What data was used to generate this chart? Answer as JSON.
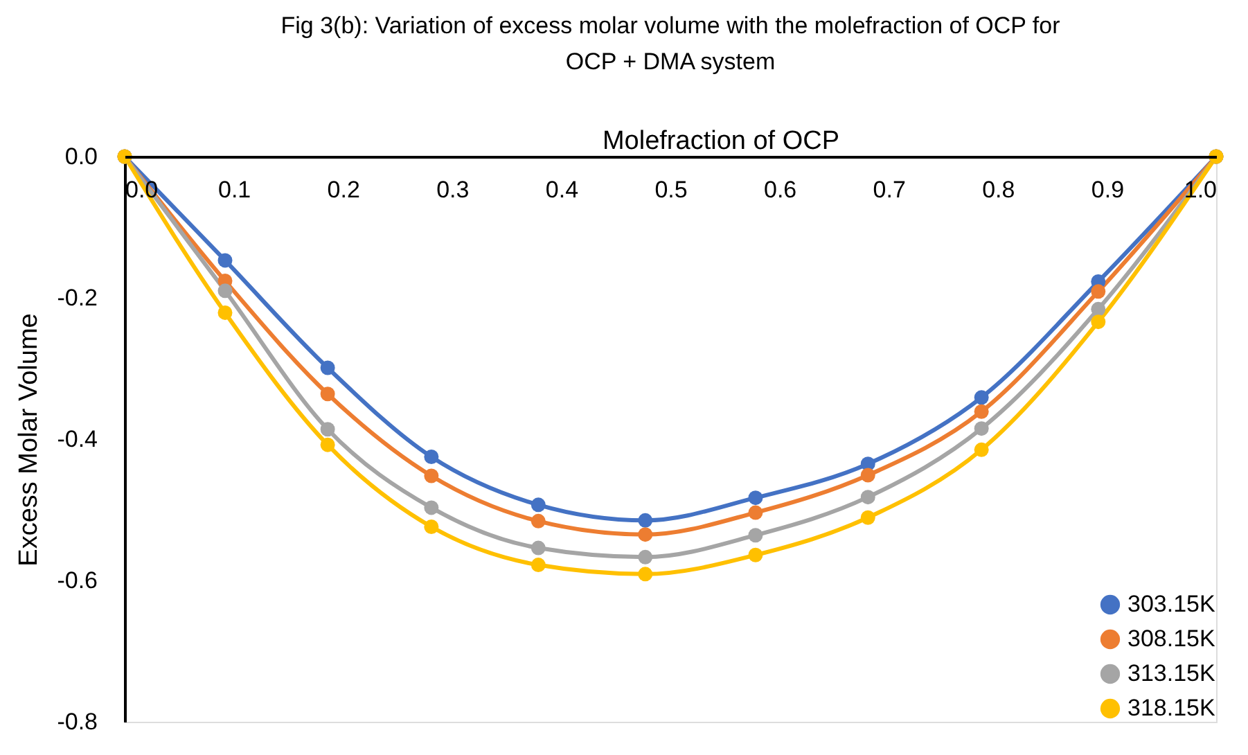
{
  "chart_data": {
    "type": "line",
    "title": "Fig 3(b): Variation of excess molar volume with the molefraction of OCP for OCP + DMA system",
    "xlabel": "Molefraction of OCP",
    "ylabel": "Excess Molar Volume",
    "x": [
      0,
      0.092,
      0.186,
      0.281,
      0.379,
      0.477,
      0.578,
      0.681,
      0.785,
      0.892,
      1.0
    ],
    "series": [
      {
        "name": "303.15K",
        "color": "#4472c4",
        "values": [
          0,
          -0.147,
          -0.299,
          -0.425,
          -0.493,
          -0.515,
          -0.483,
          -0.435,
          -0.341,
          -0.177,
          0
        ]
      },
      {
        "name": "308.15K",
        "color": "#ed7d31",
        "values": [
          0,
          -0.176,
          -0.336,
          -0.452,
          -0.516,
          -0.535,
          -0.504,
          -0.451,
          -0.361,
          -0.191,
          0
        ]
      },
      {
        "name": "313.15K",
        "color": "#a5a5a5",
        "values": [
          0,
          -0.19,
          -0.386,
          -0.497,
          -0.554,
          -0.567,
          -0.536,
          -0.482,
          -0.385,
          -0.216,
          0
        ]
      },
      {
        "name": "318.15K",
        "color": "#ffc000",
        "values": [
          0,
          -0.221,
          -0.408,
          -0.524,
          -0.578,
          -0.591,
          -0.564,
          -0.511,
          -0.415,
          -0.234,
          0
        ]
      }
    ],
    "xlim": [
      0,
      1.0
    ],
    "xticks": [
      {
        "value": 0,
        "label": "0.0"
      },
      0.1,
      0.2,
      0.3,
      0.4,
      0.5,
      0.6,
      0.7,
      0.8,
      0.9,
      {
        "value": 1.0,
        "label": "1.0"
      }
    ],
    "ylim": [
      -0.8,
      0
    ],
    "yticks": [
      {
        "value": 0,
        "label": "0.0"
      },
      -0.2,
      -0.4,
      -0.6,
      -0.8
    ],
    "grid": false,
    "legend": "bottom right",
    "marker": "circle",
    "line_style": "solid"
  }
}
